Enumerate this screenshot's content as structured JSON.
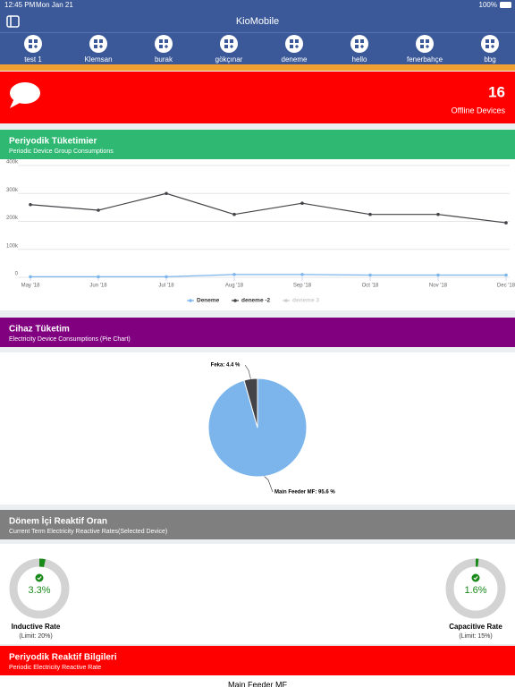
{
  "status_bar": {
    "time": "12:45 PM",
    "date": "Mon Jan 21",
    "battery": "100%"
  },
  "nav": {
    "title": "KioMobile"
  },
  "tabs": [
    "test 1",
    "Klemsan",
    "burak",
    "gökçınar",
    "deneme",
    "hello",
    "fenerbahçe",
    "bbg"
  ],
  "offline": {
    "count": 16,
    "label": "Offline Devices"
  },
  "sections": [
    {
      "title": "Periyodik Tüketimier",
      "subtitle": "Periodic Device Group Consumptions",
      "color": "#2eb872",
      "chart_data": {
        "type": "line",
        "categories": [
          "May '18",
          "Jun '18",
          "Jul '18",
          "Aug '18",
          "Sep '18",
          "Oct '18",
          "Nov '18",
          "Dec '18"
        ],
        "series": [
          {
            "name": "Deneme",
            "color": "#7cb5ec",
            "values": [
              2000,
              2000,
              2000,
              10000,
              10000,
              8000,
              8000,
              8000
            ]
          },
          {
            "name": "deneme -2",
            "color": "#434348",
            "values": [
              260000,
              240000,
              300000,
              225000,
              265000,
              225000,
              225000,
              195000
            ]
          },
          {
            "name": "deneme 3",
            "color": "#cccccc",
            "hidden": true,
            "values": [
              null,
              null,
              null,
              null,
              null,
              null,
              null,
              null
            ]
          }
        ],
        "ylim": [
          0,
          400000
        ],
        "yticks": [
          0,
          {
            "value": 100000,
            "label": "100k"
          },
          {
            "value": 200000,
            "label": "200k"
          },
          {
            "value": 300000,
            "label": "300k"
          },
          {
            "value": 400000,
            "label": "400k"
          }
        ],
        "grid": true,
        "legend": "bottom"
      }
    },
    {
      "title": "Cihaz Tüketim",
      "subtitle": "Electricity Device Consumptions (Pie Chart)",
      "color": "#800080",
      "chart_data": {
        "type": "pie",
        "values": [
          95.6,
          4.4
        ],
        "value_labels": [
          "Main Feeder MF: 95.6 %",
          "Feka: 4.4 %"
        ],
        "colors": [
          "#7cb5ec",
          "#434348"
        ]
      }
    },
    {
      "title": "Dönem İçi Reaktif Oran",
      "subtitle": "Current Term Electricity Reactive Rates(Selected Device)",
      "color": "#7f7f7f",
      "gauges": [
        {
          "value": 3.3,
          "value_label": "3.3%",
          "name": "Inductive Rate",
          "limit": "(Limit: 20%)"
        },
        {
          "value": 1.6,
          "value_label": "1.6%",
          "name": "Capacitive Rate",
          "limit": "(Limit: 15%)"
        }
      ]
    },
    {
      "title": "Periyodik Reaktif Bilgileri",
      "subtitle": "Periodic Electricity Reactive Rate",
      "color": "#ff0000",
      "footer": "Main Feeder MF"
    }
  ]
}
